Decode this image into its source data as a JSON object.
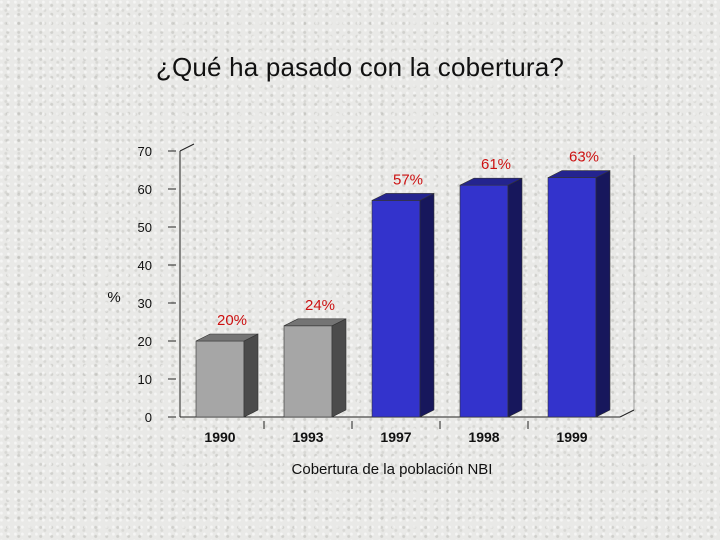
{
  "slide": {
    "title": "¿Qué ha pasado con la cobertura?"
  },
  "chart_data": {
    "type": "bar",
    "style": "3d",
    "categories": [
      "1990",
      "1993",
      "1997",
      "1998",
      "1999"
    ],
    "values": [
      20,
      24,
      57,
      61,
      63
    ],
    "data_labels": [
      "20%",
      "24%",
      "57%",
      "61%",
      "63%"
    ],
    "bar_colors": [
      "#a6a6a6",
      "#a6a6a6",
      "#3333cc",
      "#3333cc",
      "#3333cc"
    ],
    "xlabel": "Cobertura de la población NBI",
    "ylabel": "%",
    "ylim": [
      0,
      70
    ],
    "yticks": [
      0,
      10,
      20,
      30,
      40,
      50,
      60,
      70
    ],
    "grid": false,
    "legend": "none"
  }
}
